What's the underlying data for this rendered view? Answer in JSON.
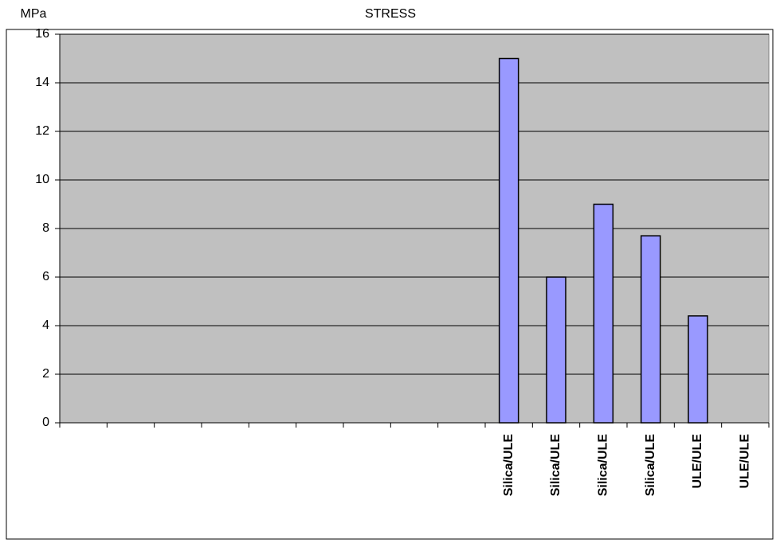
{
  "chart_data": {
    "type": "bar",
    "title": "STRESS",
    "ylabel": "MPa",
    "categories": [
      null,
      null,
      null,
      null,
      null,
      null,
      null,
      null,
      null,
      "Silica/ULE",
      "Silica/ULE",
      "Silica/ULE",
      "Silica/ULE",
      "ULE/ULE",
      "ULE/ULE"
    ],
    "values": [
      null,
      null,
      null,
      null,
      null,
      null,
      null,
      null,
      null,
      15,
      6,
      9,
      7.7,
      4.4,
      null
    ],
    "color": "#9999ff",
    "ylim": [
      0,
      16
    ],
    "yticks": [
      0,
      2,
      4,
      6,
      8,
      10,
      12,
      14,
      16
    ],
    "grid": true
  }
}
